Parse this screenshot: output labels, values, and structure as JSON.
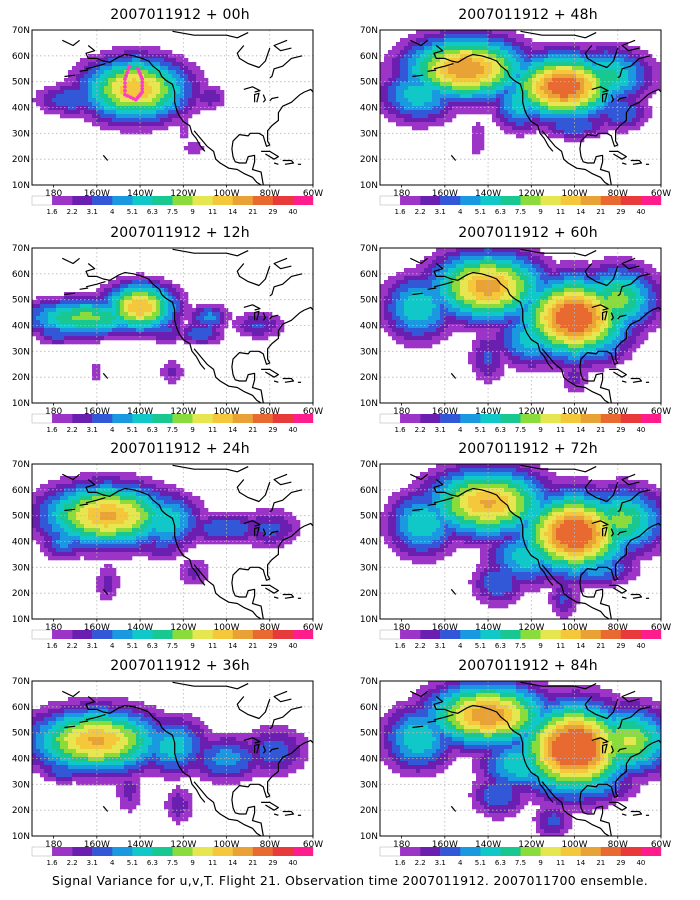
{
  "caption": "Signal Variance for u,v,T. Flight 21. Observation time 2007011912. 2007011700 ensemble.",
  "colors": {
    "scale": [
      "#ffffff",
      "#9c34c8",
      "#6a1fb0",
      "#3258d8",
      "#1a98e0",
      "#10c8c8",
      "#18c890",
      "#8adc3c",
      "#e6e650",
      "#f4c83a",
      "#e8a236",
      "#e86a30",
      "#e83a3a",
      "#ff1c8c"
    ],
    "coast": "#000000",
    "grid": "#b8b8b8",
    "track": "#ff3cc8"
  },
  "chart_data": [
    {
      "type": "heatmap",
      "title": "2007011912 + 00h",
      "lead_hours": 0,
      "field": "signal variance",
      "xticks": [
        "180",
        "160W",
        "140W",
        "120W",
        "100W",
        "80W",
        "60W"
      ],
      "yticks": [
        "70N",
        "60N",
        "50N",
        "40N",
        "30N",
        "20N",
        "10N"
      ],
      "xlim": [
        -190,
        -60
      ],
      "ylim": [
        10,
        70
      ],
      "colorbar_labels": [
        "1.6",
        "2.2",
        "3.1",
        "4",
        "5.1",
        "6.3",
        "7.5",
        "9",
        "11",
        "14",
        "21",
        "29",
        "40"
      ]
    },
    {
      "type": "heatmap",
      "title": "2007011912 + 48h",
      "lead_hours": 48,
      "field": "signal variance",
      "xticks": [
        "180",
        "160W",
        "140W",
        "120W",
        "100W",
        "80W",
        "60W"
      ],
      "yticks": [
        "70N",
        "60N",
        "50N",
        "40N",
        "30N",
        "20N",
        "10N"
      ],
      "xlim": [
        -190,
        -60
      ],
      "ylim": [
        10,
        70
      ],
      "colorbar_labels": [
        "1.6",
        "2.2",
        "3.1",
        "4",
        "5.1",
        "6.3",
        "7.5",
        "9",
        "11",
        "14",
        "21",
        "29",
        "40"
      ]
    },
    {
      "type": "heatmap",
      "title": "2007011912 + 12h",
      "lead_hours": 12,
      "field": "signal variance",
      "xticks": [
        "180",
        "160W",
        "140W",
        "120W",
        "100W",
        "80W",
        "60W"
      ],
      "yticks": [
        "70N",
        "60N",
        "50N",
        "40N",
        "30N",
        "20N",
        "10N"
      ],
      "xlim": [
        -190,
        -60
      ],
      "ylim": [
        10,
        70
      ],
      "colorbar_labels": [
        "1.6",
        "2.2",
        "3.1",
        "4",
        "5.1",
        "6.3",
        "7.5",
        "9",
        "11",
        "14",
        "21",
        "29",
        "40"
      ]
    },
    {
      "type": "heatmap",
      "title": "2007011912 + 60h",
      "lead_hours": 60,
      "field": "signal variance",
      "xticks": [
        "180",
        "160W",
        "140W",
        "120W",
        "100W",
        "80W",
        "60W"
      ],
      "yticks": [
        "70N",
        "60N",
        "50N",
        "40N",
        "30N",
        "20N",
        "10N"
      ],
      "xlim": [
        -190,
        -60
      ],
      "ylim": [
        10,
        70
      ],
      "colorbar_labels": [
        "1.6",
        "2.2",
        "3.1",
        "4",
        "5.1",
        "6.3",
        "7.5",
        "9",
        "11",
        "14",
        "21",
        "29",
        "40"
      ]
    },
    {
      "type": "heatmap",
      "title": "2007011912 + 24h",
      "lead_hours": 24,
      "field": "signal variance",
      "xticks": [
        "180",
        "160W",
        "140W",
        "120W",
        "100W",
        "80W",
        "60W"
      ],
      "yticks": [
        "70N",
        "60N",
        "50N",
        "40N",
        "30N",
        "20N",
        "10N"
      ],
      "xlim": [
        -190,
        -60
      ],
      "ylim": [
        10,
        70
      ],
      "colorbar_labels": [
        "1.6",
        "2.2",
        "3.1",
        "4",
        "5.1",
        "6.3",
        "7.5",
        "9",
        "11",
        "14",
        "21",
        "29",
        "40"
      ]
    },
    {
      "type": "heatmap",
      "title": "2007011912 + 72h",
      "lead_hours": 72,
      "field": "signal variance",
      "xticks": [
        "180",
        "160W",
        "140W",
        "120W",
        "100W",
        "80W",
        "60W"
      ],
      "yticks": [
        "70N",
        "60N",
        "50N",
        "40N",
        "30N",
        "20N",
        "10N"
      ],
      "xlim": [
        -190,
        -60
      ],
      "ylim": [
        10,
        70
      ],
      "colorbar_labels": [
        "1.6",
        "2.2",
        "3.1",
        "4",
        "5.1",
        "6.3",
        "7.5",
        "9",
        "11",
        "14",
        "21",
        "29",
        "40"
      ]
    },
    {
      "type": "heatmap",
      "title": "2007011912 + 36h",
      "lead_hours": 36,
      "field": "signal variance",
      "xticks": [
        "180",
        "160W",
        "140W",
        "120W",
        "100W",
        "80W",
        "60W"
      ],
      "yticks": [
        "70N",
        "60N",
        "50N",
        "40N",
        "30N",
        "20N",
        "10N"
      ],
      "xlim": [
        -190,
        -60
      ],
      "ylim": [
        10,
        70
      ],
      "colorbar_labels": [
        "1.6",
        "2.2",
        "3.1",
        "4",
        "5.1",
        "6.3",
        "7.5",
        "9",
        "11",
        "14",
        "21",
        "29",
        "40"
      ]
    },
    {
      "type": "heatmap",
      "title": "2007011912 + 84h",
      "lead_hours": 84,
      "field": "signal variance",
      "xticks": [
        "180",
        "160W",
        "140W",
        "120W",
        "100W",
        "80W",
        "60W"
      ],
      "yticks": [
        "70N",
        "60N",
        "50N",
        "40N",
        "30N",
        "20N",
        "10N"
      ],
      "xlim": [
        -190,
        -60
      ],
      "ylim": [
        10,
        70
      ],
      "colorbar_labels": [
        "1.6",
        "2.2",
        "3.1",
        "4",
        "5.1",
        "6.3",
        "7.5",
        "9",
        "11",
        "14",
        "21",
        "29",
        "40"
      ]
    }
  ]
}
